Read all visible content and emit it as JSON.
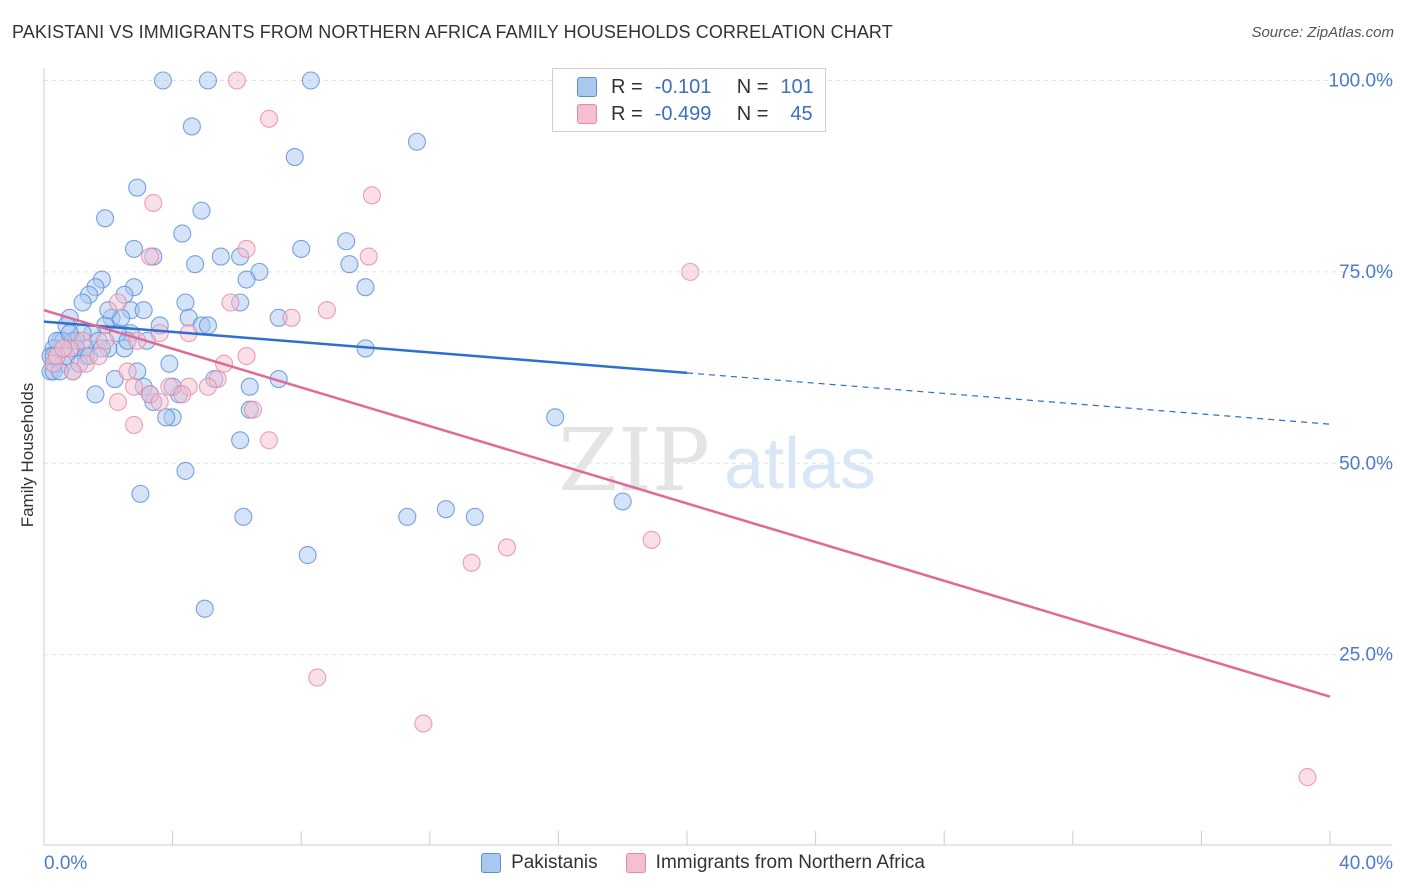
{
  "title": "PAKISTANI VS IMMIGRANTS FROM NORTHERN AFRICA FAMILY HOUSEHOLDS CORRELATION CHART",
  "source": "Source: ZipAtlas.com",
  "watermark": {
    "zip": "ZIP",
    "atlas": "atlas"
  },
  "legend": {
    "rows": [
      {
        "r_label": "R =",
        "r_value": "-0.101",
        "n_label": "N =",
        "n_value": "101"
      },
      {
        "r_label": "R =",
        "r_value": "-0.499",
        "n_label": "N =",
        "n_value": "45"
      }
    ]
  },
  "colors": {
    "pakistani_fill": "#a9c8f0",
    "pakistani_stroke": "#5a8fd8",
    "pakistani_line": "#2f6fcf",
    "nafrica_fill": "#f5bfd0",
    "nafrica_stroke": "#e58aa6",
    "nafrica_line": "#e06a93",
    "axis_text": "#4a7cc9",
    "grid": "#e2e2e2"
  },
  "chart_data": {
    "type": "scatter",
    "title": "PAKISTANI VS IMMIGRANTS FROM NORTHERN AFRICA FAMILY HOUSEHOLDS CORRELATION CHART",
    "xlabel": "",
    "ylabel": "Family Households",
    "xlim": [
      0,
      40
    ],
    "ylim": [
      0,
      103
    ],
    "x_tick_labels": [
      "0.0%",
      "40.0%"
    ],
    "y_tick_labels": [
      "25.0%",
      "50.0%",
      "75.0%",
      "100.0%"
    ],
    "y_ticks": [
      25,
      50,
      75,
      100
    ],
    "grid": true,
    "legend_position": "top-center",
    "series": [
      {
        "name": "Pakistanis",
        "points": [
          [
            3.7,
            100
          ],
          [
            5.1,
            100
          ],
          [
            8.3,
            100
          ],
          [
            4.6,
            94
          ],
          [
            11.6,
            92
          ],
          [
            7.8,
            90
          ],
          [
            2.9,
            86
          ],
          [
            4.9,
            83
          ],
          [
            1.9,
            82
          ],
          [
            4.3,
            80
          ],
          [
            9.4,
            79
          ],
          [
            8.0,
            78
          ],
          [
            2.8,
            78
          ],
          [
            3.4,
            77
          ],
          [
            6.1,
            77
          ],
          [
            5.5,
            77
          ],
          [
            9.5,
            76
          ],
          [
            4.7,
            76
          ],
          [
            6.7,
            75
          ],
          [
            1.8,
            74
          ],
          [
            6.3,
            74
          ],
          [
            1.6,
            73
          ],
          [
            2.8,
            73
          ],
          [
            10.0,
            73
          ],
          [
            1.4,
            72
          ],
          [
            2.5,
            72
          ],
          [
            4.4,
            71
          ],
          [
            6.1,
            71
          ],
          [
            1.2,
            71
          ],
          [
            2.7,
            70
          ],
          [
            3.1,
            70
          ],
          [
            0.8,
            69
          ],
          [
            2.1,
            69
          ],
          [
            4.5,
            69
          ],
          [
            4.9,
            68
          ],
          [
            3.6,
            68
          ],
          [
            1.9,
            68
          ],
          [
            0.7,
            68
          ],
          [
            7.3,
            69
          ],
          [
            5.1,
            68
          ],
          [
            2.7,
            67
          ],
          [
            2.3,
            67
          ],
          [
            1.5,
            67
          ],
          [
            1.2,
            67
          ],
          [
            0.5,
            66
          ],
          [
            0.9,
            66
          ],
          [
            1.0,
            66
          ],
          [
            0.6,
            66
          ],
          [
            1.3,
            65
          ],
          [
            2.5,
            65
          ],
          [
            2.0,
            65
          ],
          [
            0.3,
            65
          ],
          [
            1.0,
            65
          ],
          [
            10.0,
            65
          ],
          [
            0.2,
            64
          ],
          [
            0.4,
            64
          ],
          [
            1.3,
            64
          ],
          [
            0.3,
            63
          ],
          [
            0.6,
            63
          ],
          [
            0.2,
            62
          ],
          [
            0.9,
            62
          ],
          [
            2.9,
            62
          ],
          [
            3.9,
            63
          ],
          [
            2.2,
            61
          ],
          [
            0.3,
            62
          ],
          [
            7.3,
            61
          ],
          [
            5.3,
            61
          ],
          [
            6.4,
            60
          ],
          [
            3.1,
            60
          ],
          [
            4.2,
            59
          ],
          [
            4.0,
            60
          ],
          [
            1.6,
            59
          ],
          [
            3.4,
            58
          ],
          [
            6.4,
            57
          ],
          [
            4.0,
            56
          ],
          [
            3.8,
            56
          ],
          [
            15.9,
            56
          ],
          [
            6.1,
            53
          ],
          [
            4.4,
            49
          ],
          [
            3.0,
            46
          ],
          [
            18.0,
            45
          ],
          [
            12.5,
            44
          ],
          [
            13.4,
            43
          ],
          [
            11.3,
            43
          ],
          [
            6.2,
            43
          ],
          [
            8.2,
            38
          ],
          [
            5.0,
            31
          ],
          [
            1.7,
            66
          ],
          [
            2.4,
            69
          ],
          [
            3.3,
            59
          ],
          [
            0.7,
            64
          ],
          [
            1.1,
            63
          ],
          [
            2.6,
            66
          ],
          [
            0.5,
            62
          ],
          [
            3.2,
            66
          ],
          [
            1.4,
            64
          ],
          [
            0.4,
            66
          ],
          [
            2.0,
            70
          ],
          [
            0.8,
            67
          ],
          [
            1.8,
            65
          ],
          [
            0.3,
            64
          ]
        ]
      },
      {
        "name": "Immigrants from Northern Africa",
        "points": [
          [
            6.0,
            100
          ],
          [
            7.0,
            95
          ],
          [
            10.2,
            85
          ],
          [
            3.4,
            84
          ],
          [
            6.3,
            78
          ],
          [
            10.1,
            77
          ],
          [
            3.3,
            77
          ],
          [
            20.1,
            75
          ],
          [
            2.3,
            71
          ],
          [
            5.8,
            71
          ],
          [
            8.8,
            70
          ],
          [
            7.7,
            69
          ],
          [
            3.6,
            67
          ],
          [
            4.5,
            67
          ],
          [
            1.9,
            66
          ],
          [
            1.2,
            66
          ],
          [
            0.8,
            65
          ],
          [
            6.3,
            64
          ],
          [
            5.6,
            63
          ],
          [
            1.3,
            63
          ],
          [
            2.6,
            62
          ],
          [
            2.8,
            60
          ],
          [
            0.3,
            63
          ],
          [
            0.9,
            62
          ],
          [
            5.4,
            61
          ],
          [
            4.5,
            60
          ],
          [
            5.1,
            60
          ],
          [
            3.9,
            60
          ],
          [
            2.3,
            58
          ],
          [
            4.3,
            59
          ],
          [
            3.3,
            59
          ],
          [
            6.5,
            57
          ],
          [
            2.8,
            55
          ],
          [
            7.0,
            53
          ],
          [
            18.9,
            40
          ],
          [
            14.4,
            39
          ],
          [
            13.3,
            37
          ],
          [
            8.5,
            22
          ],
          [
            11.8,
            16
          ],
          [
            39.3,
            9
          ],
          [
            0.4,
            64
          ],
          [
            1.7,
            64
          ],
          [
            0.6,
            65
          ],
          [
            2.9,
            66
          ],
          [
            3.6,
            58
          ]
        ]
      }
    ],
    "trend_lines": [
      {
        "series": "Pakistanis",
        "x_start": 0,
        "y_start": 68.5,
        "x_end": 20,
        "y_end": 61.8,
        "dashed_to_x": 40,
        "dashed_to_y": 55.1
      },
      {
        "series": "Immigrants from Northern Africa",
        "x_start": 0,
        "y_start": 70.0,
        "x_end": 40,
        "y_end": 19.5
      }
    ]
  },
  "bottom_legend": [
    "Pakistanis",
    "Immigrants from Northern Africa"
  ]
}
